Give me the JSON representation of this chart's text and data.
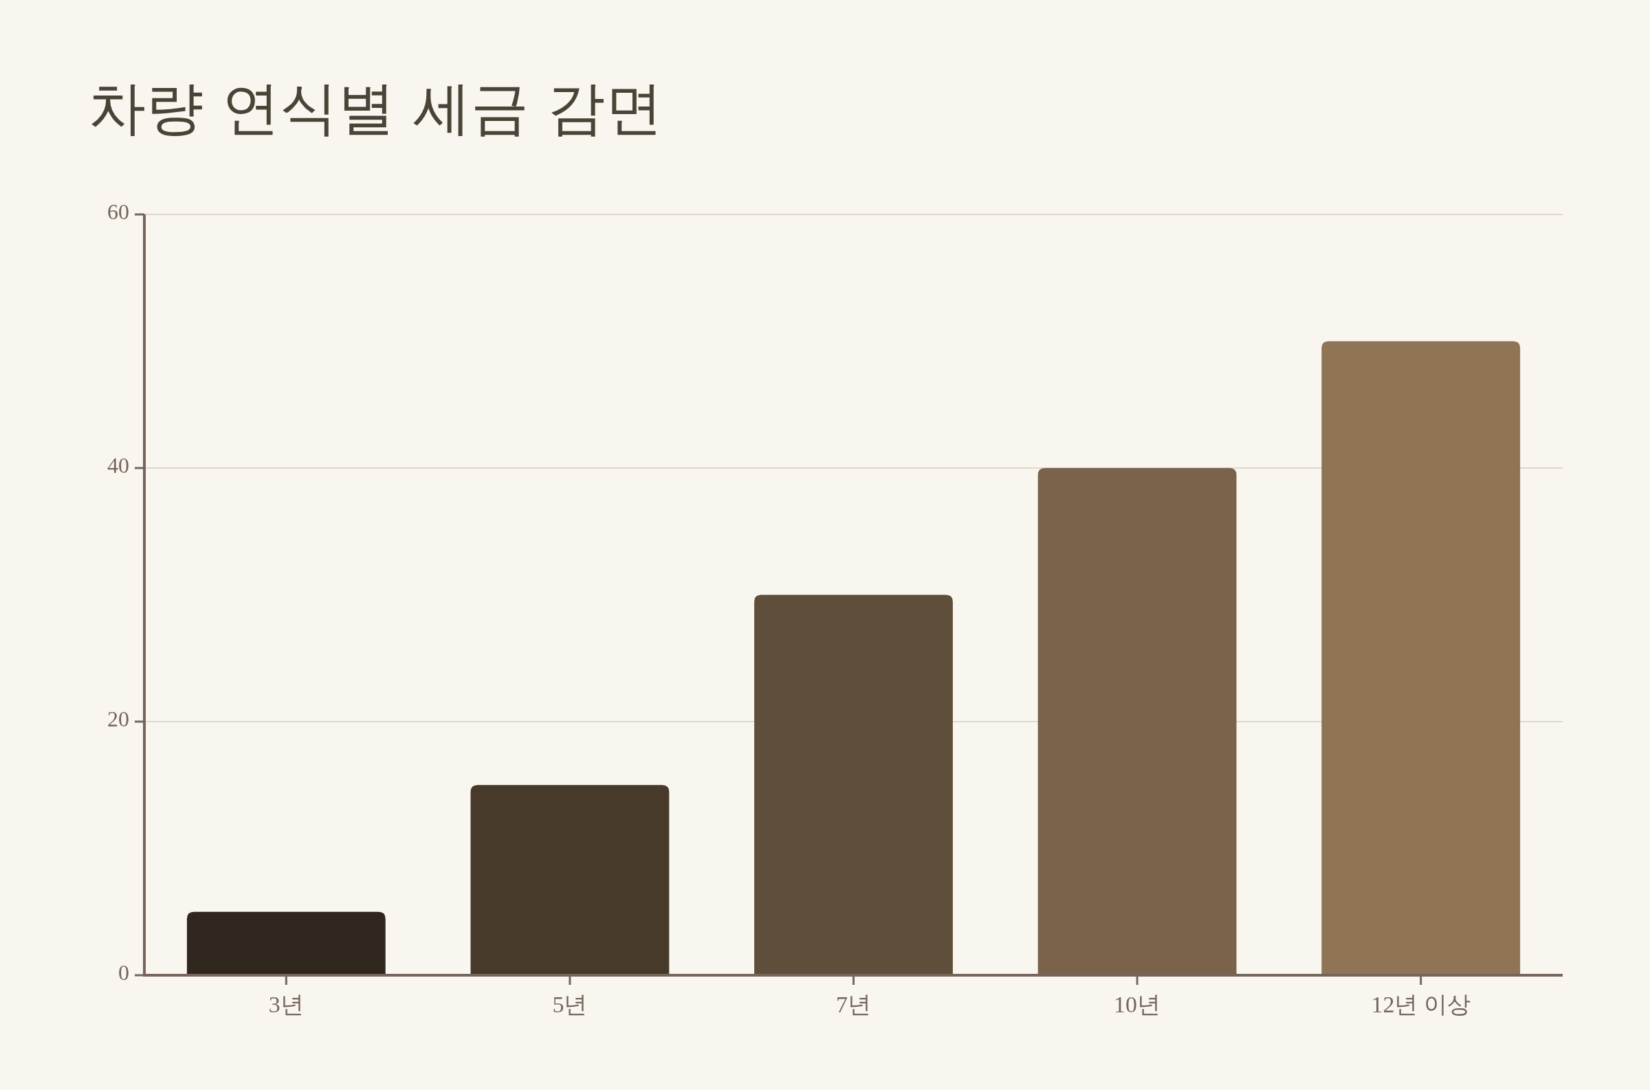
{
  "chart_data": {
    "type": "bar",
    "title": "차량 연식별 세금 감면",
    "categories": [
      "3년",
      "5년",
      "7년",
      "10년",
      "12년 이상"
    ],
    "values": [
      5,
      15,
      30,
      40,
      50
    ],
    "colors": [
      "#2f271e",
      "#483a2b",
      "#5f4e3a",
      "#7a634a",
      "#8f7556"
    ],
    "ylim": [
      0,
      60
    ],
    "yticks": [
      0,
      20,
      40,
      60
    ],
    "grid": "y"
  }
}
